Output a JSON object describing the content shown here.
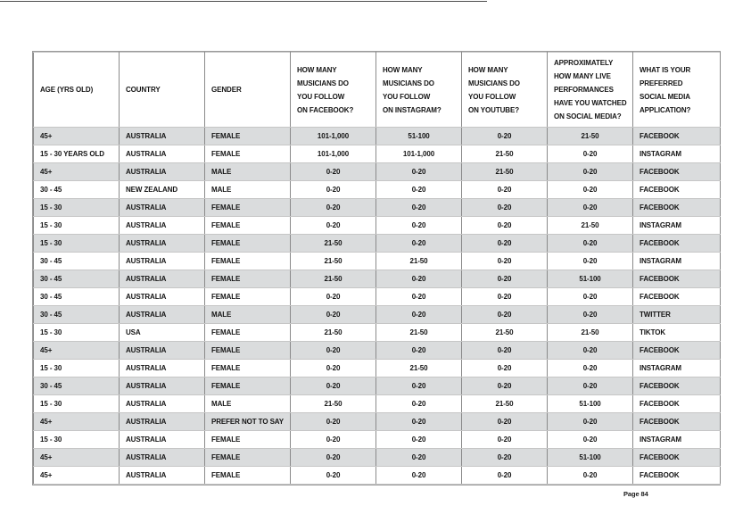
{
  "page": {
    "footer_label": "Page 84"
  },
  "colors": {
    "row_stripe": "#dadcdd",
    "grid_vertical": "#8a8a8a",
    "grid_horizontal": "#c6c6c6",
    "text": "#141414",
    "background": "#ffffff"
  },
  "table": {
    "columns": [
      {
        "key": "age",
        "label": "AGE (YRS OLD)"
      },
      {
        "key": "country",
        "label": "COUNTRY"
      },
      {
        "key": "gender",
        "label": "GENDER"
      },
      {
        "key": "facebook_follow",
        "label": "HOW MANY\nMUSICIANS DO\nYOU FOLLOW\nON FACEBOOK?"
      },
      {
        "key": "instagram_follow",
        "label": "HOW MANY\nMUSICIANS DO\nYOU FOLLOW\nON INSTAGRAM?"
      },
      {
        "key": "youtube_follow",
        "label": "HOW MANY\nMUSICIANS DO\nYOU FOLLOW\nON YOUTUBE?"
      },
      {
        "key": "live_performances",
        "label": "APPROXIMATELY\nHOW MANY LIVE\nPERFORMANCES\nHAVE YOU WATCHED\nON SOCIAL MEDIA?"
      },
      {
        "key": "preferred_app",
        "label": "WHAT IS YOUR\nPREFERRED\nSOCIAL MEDIA\nAPPLICATION?"
      }
    ],
    "rows": [
      [
        "45+",
        "AUSTRALIA",
        "FEMALE",
        "101-1,000",
        "51-100",
        "0-20",
        "21-50",
        "FACEBOOK"
      ],
      [
        "15 - 30 YEARS OLD",
        "AUSTRALIA",
        "FEMALE",
        "101-1,000",
        "101-1,000",
        "21-50",
        "0-20",
        "INSTAGRAM"
      ],
      [
        "45+",
        "AUSTRALIA",
        "MALE",
        "0-20",
        "0-20",
        "21-50",
        "0-20",
        "FACEBOOK"
      ],
      [
        "30 - 45",
        "NEW ZEALAND",
        "MALE",
        "0-20",
        "0-20",
        "0-20",
        "0-20",
        "FACEBOOK"
      ],
      [
        "15 - 30",
        "AUSTRALIA",
        "FEMALE",
        "0-20",
        "0-20",
        "0-20",
        "0-20",
        "FACEBOOK"
      ],
      [
        "15 - 30",
        "AUSTRALIA",
        "FEMALE",
        "0-20",
        "0-20",
        "0-20",
        "21-50",
        "INSTAGRAM"
      ],
      [
        "15 - 30",
        "AUSTRALIA",
        "FEMALE",
        "21-50",
        "0-20",
        "0-20",
        "0-20",
        "FACEBOOK"
      ],
      [
        "30 - 45",
        "AUSTRALIA",
        "FEMALE",
        "21-50",
        "21-50",
        "0-20",
        "0-20",
        "INSTAGRAM"
      ],
      [
        "30 - 45",
        "AUSTRALIA",
        "FEMALE",
        "21-50",
        "0-20",
        "0-20",
        "51-100",
        "FACEBOOK"
      ],
      [
        "30 - 45",
        "AUSTRALIA",
        "FEMALE",
        "0-20",
        "0-20",
        "0-20",
        "0-20",
        "FACEBOOK"
      ],
      [
        "30 - 45",
        "AUSTRALIA",
        "MALE",
        "0-20",
        "0-20",
        "0-20",
        "0-20",
        "TWITTER"
      ],
      [
        "15 - 30",
        "USA",
        "FEMALE",
        "21-50",
        "21-50",
        "21-50",
        "21-50",
        "TIKTOK"
      ],
      [
        "45+",
        "AUSTRALIA",
        "FEMALE",
        "0-20",
        "0-20",
        "0-20",
        "0-20",
        "FACEBOOK"
      ],
      [
        "15 - 30",
        "AUSTRALIA",
        "FEMALE",
        "0-20",
        "21-50",
        "0-20",
        "0-20",
        "INSTAGRAM"
      ],
      [
        "30 - 45",
        "AUSTRALIA",
        "FEMALE",
        "0-20",
        "0-20",
        "0-20",
        "0-20",
        "FACEBOOK"
      ],
      [
        "15 - 30",
        "AUSTRALIA",
        "MALE",
        "21-50",
        "0-20",
        "21-50",
        "51-100",
        "FACEBOOK"
      ],
      [
        "45+",
        "AUSTRALIA",
        "PREFER NOT TO SAY",
        "0-20",
        "0-20",
        "0-20",
        "0-20",
        "FACEBOOK"
      ],
      [
        "15 - 30",
        "AUSTRALIA",
        "FEMALE",
        "0-20",
        "0-20",
        "0-20",
        "0-20",
        "INSTAGRAM"
      ],
      [
        "45+",
        "AUSTRALIA",
        "FEMALE",
        "0-20",
        "0-20",
        "0-20",
        "51-100",
        "FACEBOOK"
      ],
      [
        "45+",
        "AUSTRALIA",
        "FEMALE",
        "0-20",
        "0-20",
        "0-20",
        "0-20",
        "FACEBOOK"
      ]
    ]
  }
}
